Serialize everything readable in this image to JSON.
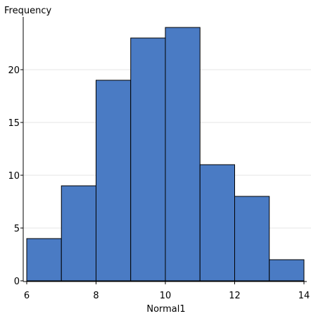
{
  "chart_data": {
    "type": "bar",
    "ylabel": "Frequency",
    "xlabel": "Normal1",
    "bin_edges": [
      6,
      7,
      8,
      9,
      10,
      11,
      12,
      13,
      14
    ],
    "values": [
      4,
      9,
      19,
      23,
      24,
      11,
      8,
      2
    ],
    "xlim": [
      6,
      14
    ],
    "ylim": [
      0,
      25
    ],
    "x_ticks": [
      6,
      8,
      10,
      12,
      14
    ],
    "y_ticks": [
      0,
      5,
      10,
      15,
      20
    ],
    "grid": true,
    "bar_color": "#4a7bc4"
  }
}
